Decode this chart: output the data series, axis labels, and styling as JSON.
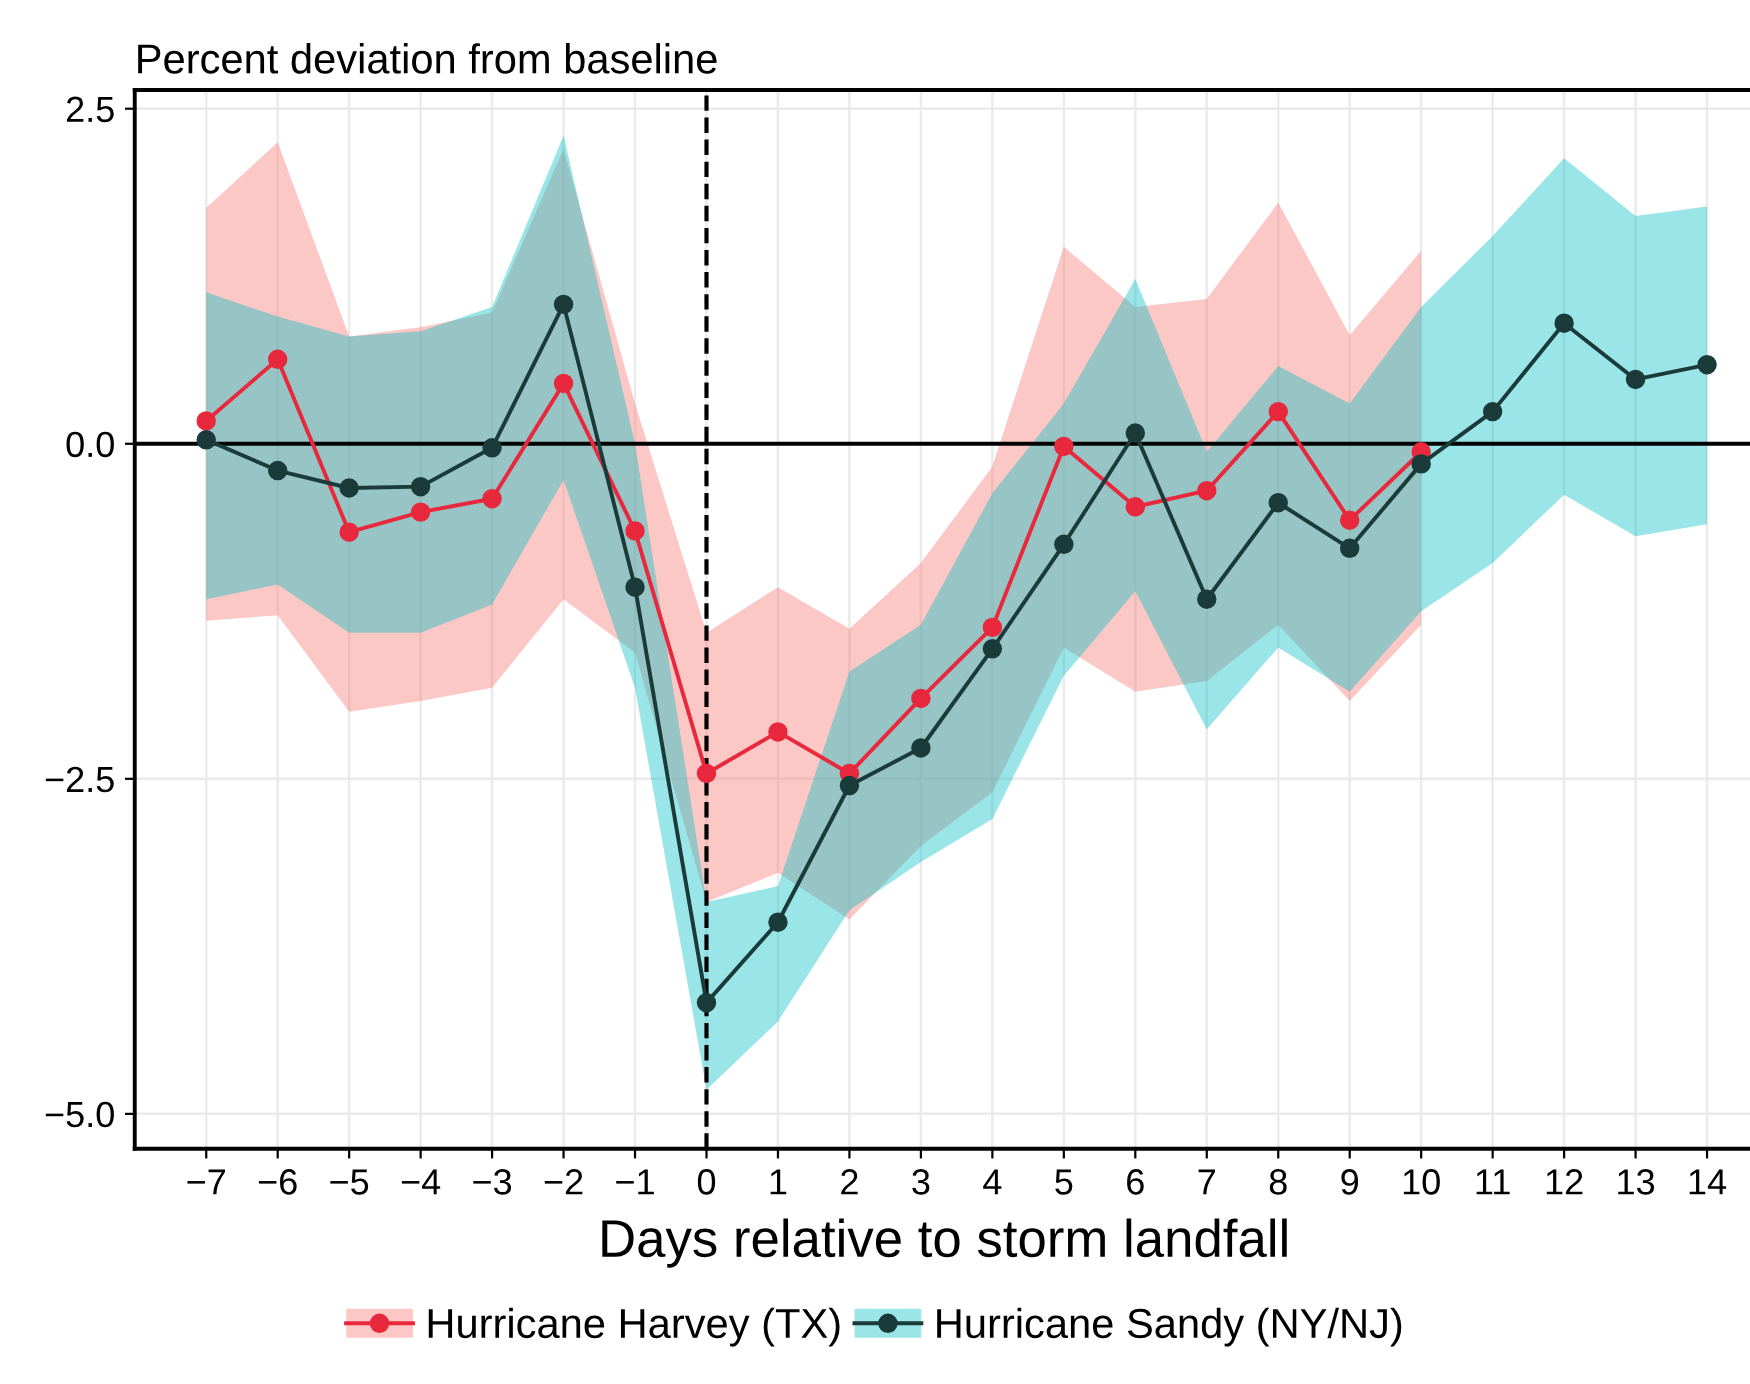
{
  "chart_data": {
    "type": "line",
    "title": "Percent deviation from baseline",
    "xlabel": "Days relative to storm landfall",
    "xlim": [
      -8.0,
      14.65
    ],
    "ylim": [
      -5.26,
      2.64
    ],
    "xticks": [
      {
        "value": -7,
        "label": "−7"
      },
      {
        "value": -6,
        "label": "−6"
      },
      {
        "value": -5,
        "label": "−5"
      },
      {
        "value": -4,
        "label": "−4"
      },
      {
        "value": -3,
        "label": "−3"
      },
      {
        "value": -2,
        "label": "−2"
      },
      {
        "value": -1,
        "label": "−1"
      },
      0,
      1,
      2,
      3,
      4,
      5,
      6,
      7,
      8,
      9,
      10,
      11,
      12,
      13,
      14
    ],
    "yticks": [
      {
        "value": 2.5,
        "label": "2.5"
      },
      {
        "value": 0,
        "label": "0.0"
      },
      {
        "value": -2.5,
        "label": "−2.5"
      },
      {
        "value": -5,
        "label": "−5.0"
      }
    ],
    "grid": true,
    "legend": "bottom",
    "marker": "circle",
    "line_style": "solid",
    "ref_lines": [
      {
        "axis": "y",
        "value": 0,
        "color": "#000000",
        "line_style": "solid"
      },
      {
        "axis": "x",
        "value": 0,
        "color": "#000000",
        "line_style": "dashed"
      }
    ],
    "series": [
      {
        "name": "Hurricane Harvey (TX)",
        "color": "#e8283c",
        "x": [
          -7,
          -6,
          -5,
          -4,
          -3,
          -2,
          -1,
          0,
          1,
          2,
          3,
          4,
          5,
          6,
          7,
          8,
          9,
          10
        ],
        "values": [
          0.17,
          0.63,
          -0.66,
          -0.51,
          -0.41,
          0.45,
          -0.65,
          -2.46,
          -2.15,
          -2.46,
          -1.9,
          -1.37,
          -0.02,
          -0.47,
          -0.35,
          0.24,
          -0.57,
          -0.06
        ],
        "upper": [
          1.76,
          2.25,
          0.8,
          0.87,
          0.98,
          2.2,
          0.3,
          -1.41,
          -1.07,
          -1.38,
          -0.89,
          -0.17,
          1.47,
          1.02,
          1.08,
          1.8,
          0.81,
          1.44
        ],
        "lower": [
          -1.32,
          -1.28,
          -2.0,
          -1.92,
          -1.82,
          -1.16,
          -1.56,
          -3.42,
          -3.2,
          -3.55,
          -3.0,
          -2.6,
          -1.52,
          -1.85,
          -1.77,
          -1.35,
          -1.92,
          -1.35
        ]
      },
      {
        "name": "Hurricane Sandy (NY/NJ)",
        "color": "#1b3b3b",
        "x": [
          -7,
          -6,
          -5,
          -4,
          -3,
          -2,
          -1,
          0,
          1,
          2,
          3,
          4,
          5,
          6,
          7,
          8,
          9,
          10,
          11,
          12,
          13,
          14
        ],
        "values": [
          0.03,
          -0.2,
          -0.33,
          -0.32,
          -0.03,
          1.04,
          -1.07,
          -4.17,
          -3.57,
          -2.55,
          -2.27,
          -1.53,
          -0.75,
          0.08,
          -1.16,
          -0.44,
          -0.78,
          -0.15,
          0.24,
          0.9,
          0.48,
          0.59
        ],
        "upper": [
          1.13,
          0.95,
          0.8,
          0.84,
          1.02,
          2.3,
          0.0,
          -3.42,
          -3.3,
          -1.7,
          -1.35,
          -0.37,
          0.3,
          1.23,
          -0.06,
          0.58,
          0.3,
          1.02,
          1.55,
          2.13,
          1.7,
          1.77
        ],
        "lower": [
          -1.16,
          -1.05,
          -1.41,
          -1.41,
          -1.2,
          -0.27,
          -1.82,
          -4.82,
          -4.31,
          -3.48,
          -3.12,
          -2.8,
          -1.73,
          -1.1,
          -2.13,
          -1.52,
          -1.85,
          -1.25,
          -0.89,
          -0.38,
          -0.69,
          -0.6
        ]
      }
    ]
  }
}
